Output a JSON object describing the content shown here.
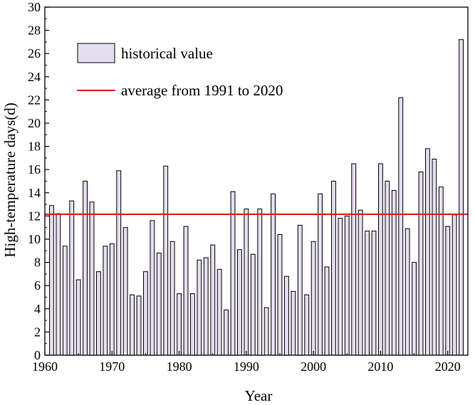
{
  "chart_data": {
    "type": "bar",
    "title": "",
    "xlabel": "Year",
    "ylabel": "High-temperature days(d)",
    "xlim": [
      1960,
      2023
    ],
    "ylim": [
      0,
      30
    ],
    "xticks": [
      1960,
      1970,
      1980,
      1990,
      2000,
      2010,
      2020
    ],
    "yticks": [
      0,
      2,
      4,
      6,
      8,
      10,
      12,
      14,
      16,
      18,
      20,
      22,
      24,
      26,
      28,
      30
    ],
    "grid": false,
    "legend_position": "top-left",
    "bar_color": "#e4dcef",
    "line_color": "#e0191b",
    "series": [
      {
        "name": "historical value",
        "kind": "bar",
        "years": [
          1961,
          1962,
          1963,
          1964,
          1965,
          1966,
          1967,
          1968,
          1969,
          1970,
          1971,
          1972,
          1973,
          1974,
          1975,
          1976,
          1977,
          1978,
          1979,
          1980,
          1981,
          1982,
          1983,
          1984,
          1985,
          1986,
          1987,
          1988,
          1989,
          1990,
          1991,
          1992,
          1993,
          1994,
          1995,
          1996,
          1997,
          1998,
          1999,
          2000,
          2001,
          2002,
          2003,
          2004,
          2005,
          2006,
          2007,
          2008,
          2009,
          2010,
          2011,
          2012,
          2013,
          2014,
          2015,
          2016,
          2017,
          2018,
          2019,
          2020,
          2021,
          2022
        ],
        "values": [
          12.9,
          12.2,
          9.4,
          13.3,
          6.5,
          15.0,
          13.2,
          7.2,
          9.4,
          9.6,
          15.9,
          11.0,
          5.2,
          5.1,
          7.2,
          11.6,
          8.8,
          16.3,
          9.8,
          5.3,
          11.1,
          5.3,
          8.2,
          8.4,
          9.5,
          7.4,
          3.9,
          14.1,
          9.1,
          12.6,
          8.7,
          12.6,
          4.1,
          13.9,
          10.4,
          6.8,
          5.5,
          11.2,
          5.2,
          9.8,
          13.9,
          7.6,
          15.0,
          11.8,
          12.0,
          16.5,
          12.5,
          10.7,
          10.7,
          16.5,
          15.0,
          14.2,
          22.2,
          10.9,
          8.0,
          15.8,
          17.8,
          16.9,
          14.5,
          11.1,
          12.1,
          27.2
        ]
      },
      {
        "name": "average from 1991 to 2020",
        "kind": "line",
        "value": 12.15
      }
    ]
  }
}
